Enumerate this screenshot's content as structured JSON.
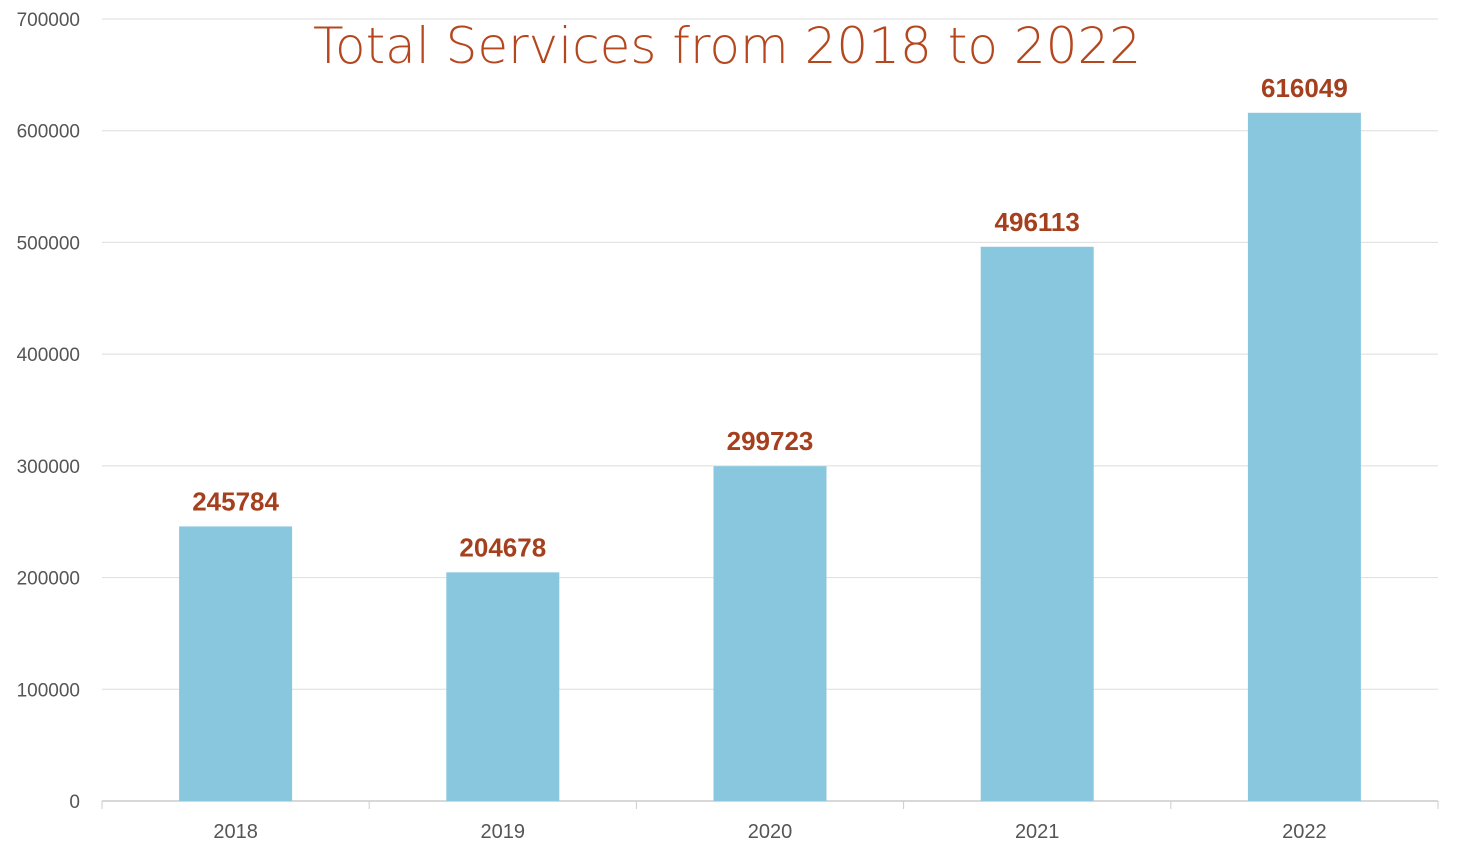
{
  "chart_data": {
    "type": "bar",
    "title": "Total Services from 2018 to 2022",
    "xlabel": "",
    "ylabel": "",
    "categories": [
      "2018",
      "2019",
      "2020",
      "2021",
      "2022"
    ],
    "values": [
      245784,
      204678,
      299723,
      496113,
      616049
    ],
    "ylim": [
      0,
      700000
    ],
    "yticks": [
      "0",
      "100000",
      "200000",
      "300000",
      "400000",
      "500000",
      "600000",
      "700000"
    ],
    "data_labels": [
      "245784",
      "204678",
      "299723",
      "496113",
      "616049"
    ],
    "grid": true,
    "legend": "none",
    "colors": {
      "bar": "#89c7df",
      "title": "#b5471f",
      "data_label": "#a5401e",
      "tick_label": "#555555",
      "grid": "#dedede",
      "axis": "#cccccc"
    }
  }
}
